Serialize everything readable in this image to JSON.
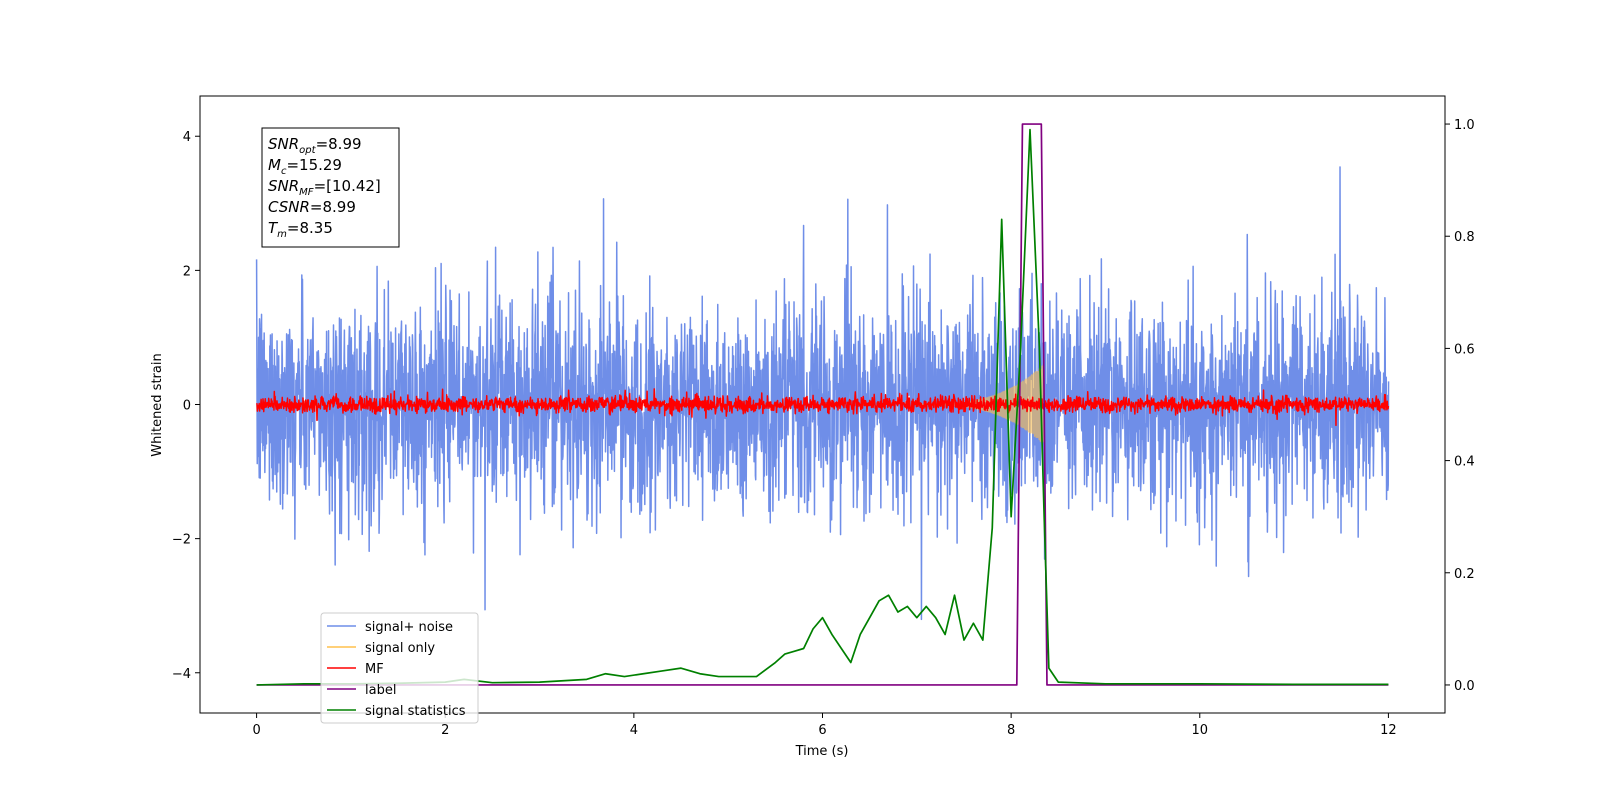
{
  "chart_data": {
    "type": "line",
    "xlabel": "Time (s)",
    "ylabel": "Whitened strain",
    "xlim": [
      -0.6,
      12.6
    ],
    "ylim": [
      -4.6,
      4.6
    ],
    "y2lim": [
      -0.05,
      1.05
    ],
    "xticks": [
      0,
      2,
      4,
      6,
      8,
      10,
      12
    ],
    "yticks": [
      -4,
      -2,
      0,
      2,
      4
    ],
    "y2ticks": [
      0.0,
      0.2,
      0.4,
      0.6,
      0.8,
      1.0
    ],
    "xtick_labels": [
      "0",
      "2",
      "4",
      "6",
      "8",
      "10",
      "12"
    ],
    "ytick_labels": [
      "−4",
      "−2",
      "0",
      "2",
      "4"
    ],
    "y2tick_labels": [
      "0.0",
      "0.2",
      "0.4",
      "0.6",
      "0.8",
      "1.0"
    ],
    "grid": false,
    "legend_position": "lower-left",
    "legend": [
      {
        "label": "signal+ noise",
        "color": "#6f8ee8"
      },
      {
        "label": "signal only",
        "color": "#ffc04d"
      },
      {
        "label": "MF",
        "color": "#ff0000"
      },
      {
        "label": "label",
        "color": "#800080"
      },
      {
        "label": "signal statistics",
        "color": "#008000"
      }
    ],
    "annotation": {
      "lines": [
        {
          "base": "SNR",
          "sub": "opt",
          "value": "=8.99"
        },
        {
          "base": "M",
          "sub": "c",
          "value": "=15.29"
        },
        {
          "base": "SNR",
          "sub": "MF",
          "value": "=[10.42]"
        },
        {
          "base": "CSNR",
          "sub": "",
          "value": "=8.99"
        },
        {
          "base": "T",
          "sub": "m",
          "value": "=8.35"
        }
      ]
    },
    "series": [
      {
        "name": "signal+ noise",
        "axis": "left",
        "color": "#6f8ee8",
        "kind": "noise",
        "x_range": [
          0,
          12
        ],
        "std": 0.78,
        "max_abs": 4.3
      },
      {
        "name": "signal only",
        "axis": "left",
        "color": "#ffc04d",
        "kind": "chirp",
        "x_range": [
          7.0,
          8.35
        ],
        "peak_amplitude": 0.6
      },
      {
        "name": "MF",
        "axis": "left",
        "color": "#ff0000",
        "kind": "noise",
        "x_range": [
          0,
          12
        ],
        "std": 0.06,
        "max_abs": 1.0
      },
      {
        "name": "label",
        "axis": "right",
        "color": "#800080",
        "x": [
          0,
          8.06,
          8.12,
          8.32,
          8.38,
          12
        ],
        "y": [
          0,
          0,
          1,
          1,
          0,
          0
        ]
      },
      {
        "name": "signal statistics",
        "axis": "right",
        "color": "#008000",
        "x": [
          0,
          0.5,
          1.0,
          1.5,
          2.0,
          2.2,
          2.5,
          3.0,
          3.5,
          3.7,
          3.9,
          4.1,
          4.3,
          4.5,
          4.7,
          4.9,
          5.1,
          5.3,
          5.5,
          5.6,
          5.7,
          5.8,
          5.9,
          6.0,
          6.1,
          6.2,
          6.3,
          6.4,
          6.5,
          6.6,
          6.7,
          6.8,
          6.9,
          7.0,
          7.1,
          7.2,
          7.3,
          7.4,
          7.5,
          7.6,
          7.7,
          7.8,
          7.9,
          8.0,
          8.1,
          8.2,
          8.3,
          8.35,
          8.4,
          8.5,
          9.0,
          10.0,
          11.0,
          12.0
        ],
        "y": [
          0.0,
          0.002,
          0.002,
          0.003,
          0.005,
          0.01,
          0.004,
          0.005,
          0.01,
          0.02,
          0.015,
          0.02,
          0.025,
          0.03,
          0.02,
          0.015,
          0.015,
          0.015,
          0.04,
          0.055,
          0.06,
          0.065,
          0.1,
          0.12,
          0.09,
          0.065,
          0.04,
          0.09,
          0.12,
          0.15,
          0.16,
          0.13,
          0.14,
          0.12,
          0.14,
          0.12,
          0.09,
          0.16,
          0.08,
          0.11,
          0.08,
          0.28,
          0.83,
          0.3,
          0.6,
          0.99,
          0.6,
          0.3,
          0.03,
          0.005,
          0.002,
          0.002,
          0.001,
          0.001
        ]
      }
    ]
  }
}
